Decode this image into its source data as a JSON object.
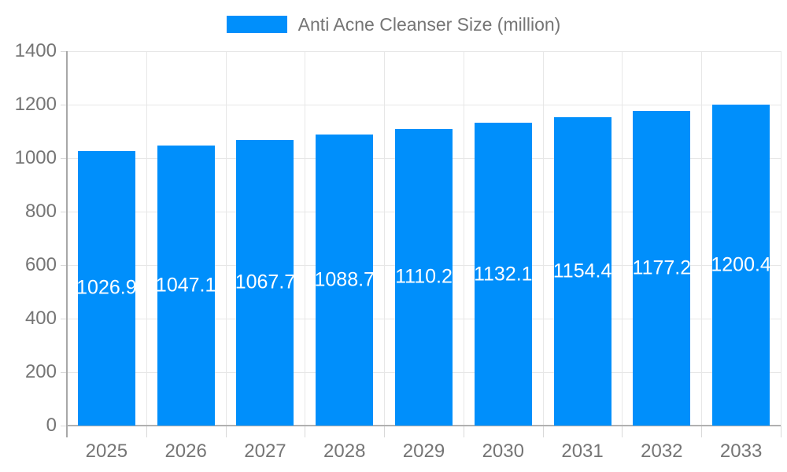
{
  "legend": {
    "label": "Anti Acne Cleanser Size (million)"
  },
  "chart_data": {
    "type": "bar",
    "title": "Anti Acne Cleanser Size (million)",
    "legend_position": "top-center",
    "grid": true,
    "categories": [
      "2025",
      "2026",
      "2027",
      "2028",
      "2029",
      "2030",
      "2031",
      "2032",
      "2033"
    ],
    "series": [
      {
        "name": "Anti Acne Cleanser Size (million)",
        "values": [
          1026.9,
          1047.1,
          1067.7,
          1088.7,
          1110.2,
          1132.1,
          1154.4,
          1177.2,
          1200.4
        ]
      }
    ],
    "value_labels": [
      "1026.9",
      "1047.1",
      "1067.7",
      "1088.7",
      "1110.2",
      "1132.1",
      "1154.4",
      "1177.2",
      "1200.4"
    ],
    "xlabel": "",
    "ylabel": "",
    "ylim": [
      0,
      1400
    ],
    "yticks": [
      0,
      200,
      400,
      600,
      800,
      1000,
      1200,
      1400
    ]
  },
  "colors": {
    "bar": "#008FFB",
    "bar_label_text": "#ffffff",
    "axis_text": "#757575",
    "legend_text": "#757575",
    "gridline": "#e7e7e7",
    "axis_line": "#a8a8a8",
    "baseline": "#b0b0b0",
    "background": "#ffffff"
  }
}
